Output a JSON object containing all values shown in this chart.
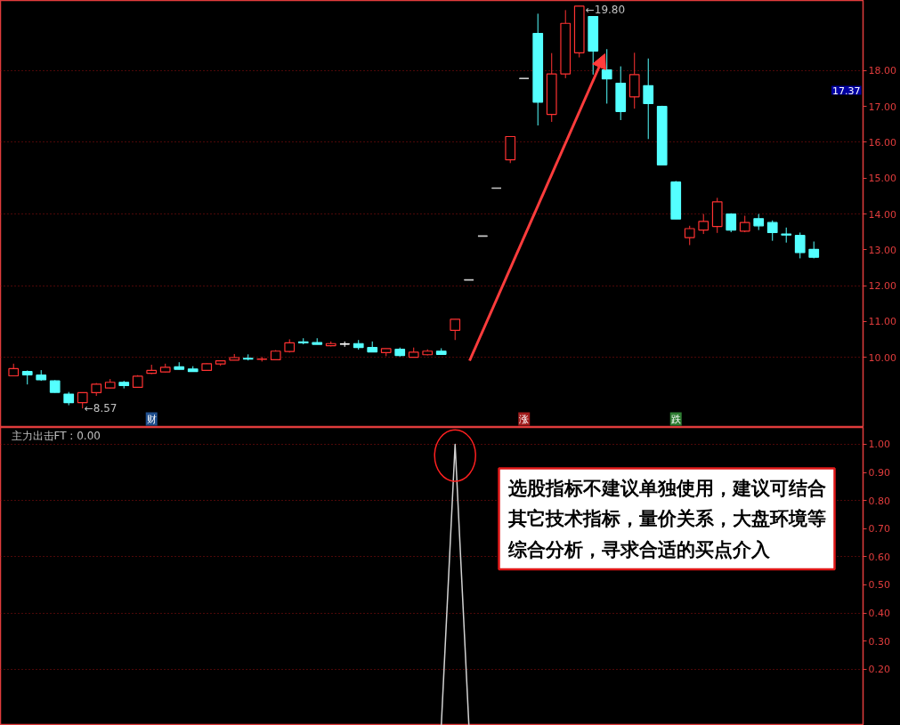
{
  "chart_data": [
    {
      "type": "candlestick",
      "categories": [
        null,
        null,
        null,
        null,
        null,
        null,
        null,
        null,
        null,
        null,
        "财",
        null,
        null,
        null,
        null,
        null,
        null,
        null,
        null,
        null,
        null,
        null,
        null,
        null,
        null,
        null,
        null,
        null,
        null,
        null,
        null,
        null,
        null,
        null,
        null,
        null,
        null,
        "涨",
        null,
        null,
        null,
        null,
        null,
        null,
        null,
        null,
        null,
        null,
        "跌",
        null,
        null,
        null,
        null,
        null,
        null,
        null,
        null,
        null,
        null
      ],
      "ohlc": [
        [
          9.48,
          9.82,
          9.48,
          9.68
        ],
        [
          9.6,
          9.63,
          9.24,
          9.51
        ],
        [
          9.5,
          9.64,
          9.34,
          9.37
        ],
        [
          9.34,
          9.36,
          9.01,
          9.02
        ],
        [
          8.97,
          9.03,
          8.66,
          8.73
        ],
        [
          8.73,
          9.02,
          8.57,
          9.01
        ],
        [
          9.01,
          9.28,
          8.92,
          9.25
        ],
        [
          9.14,
          9.39,
          9.13,
          9.3
        ],
        [
          9.3,
          9.34,
          9.13,
          9.21
        ],
        [
          9.16,
          9.5,
          9.16,
          9.47
        ],
        [
          9.55,
          9.79,
          9.53,
          9.63
        ],
        [
          9.59,
          9.82,
          9.58,
          9.72
        ],
        [
          9.73,
          9.86,
          9.66,
          9.66
        ],
        [
          9.67,
          9.75,
          9.6,
          9.6
        ],
        [
          9.63,
          9.83,
          9.63,
          9.82
        ],
        [
          9.81,
          9.91,
          9.76,
          9.9
        ],
        [
          9.92,
          10.09,
          9.92,
          9.99
        ],
        [
          9.97,
          10.08,
          9.91,
          9.95
        ],
        [
          9.94,
          10.01,
          9.88,
          9.95
        ],
        [
          9.93,
          10.2,
          9.93,
          10.17
        ],
        [
          10.16,
          10.5,
          10.13,
          10.4
        ],
        [
          10.43,
          10.53,
          10.36,
          10.4
        ],
        [
          10.41,
          10.53,
          10.36,
          10.36
        ],
        [
          10.32,
          10.44,
          10.3,
          10.38
        ],
        [
          10.37,
          10.44,
          10.29,
          10.37
        ],
        [
          10.38,
          10.48,
          10.21,
          10.27
        ],
        [
          10.27,
          10.44,
          10.15,
          10.15
        ],
        [
          10.13,
          10.24,
          10.03,
          10.24
        ],
        [
          10.22,
          10.27,
          10.02,
          10.05
        ],
        [
          10.0,
          10.27,
          10.0,
          10.14
        ],
        [
          10.07,
          10.22,
          10.05,
          10.17
        ],
        [
          10.17,
          10.25,
          10.08,
          10.08
        ],
        [
          10.75,
          11.06,
          10.48,
          11.06
        ],
        [
          12.16,
          12.16,
          12.16,
          12.16
        ],
        [
          13.38,
          13.38,
          13.38,
          13.38
        ],
        [
          14.72,
          14.72,
          14.72,
          14.72
        ],
        [
          15.51,
          16.16,
          15.42,
          16.16
        ],
        [
          17.78,
          17.78,
          17.78,
          17.78
        ],
        [
          19.04,
          19.59,
          16.47,
          17.12
        ],
        [
          16.78,
          18.49,
          16.57,
          17.91
        ],
        [
          17.91,
          19.69,
          17.79,
          19.32
        ],
        [
          18.5,
          19.8,
          18.37,
          19.8
        ],
        [
          19.51,
          19.51,
          17.89,
          18.55
        ],
        [
          18.02,
          18.6,
          17.08,
          17.77
        ],
        [
          17.65,
          18.12,
          16.62,
          16.86
        ],
        [
          17.27,
          18.5,
          16.94,
          17.89
        ],
        [
          17.58,
          18.34,
          16.09,
          17.08
        ],
        [
          17.0,
          17.02,
          15.37,
          15.37
        ],
        [
          14.89,
          14.92,
          13.86,
          13.86
        ],
        [
          13.34,
          13.67,
          13.13,
          13.59
        ],
        [
          13.55,
          14.0,
          13.44,
          13.79
        ],
        [
          13.65,
          14.45,
          13.47,
          14.34
        ],
        [
          14.0,
          14.02,
          13.49,
          13.55
        ],
        [
          13.52,
          13.95,
          13.49,
          13.76
        ],
        [
          13.87,
          14.0,
          13.55,
          13.67
        ],
        [
          13.76,
          13.82,
          13.25,
          13.48
        ],
        [
          13.44,
          13.62,
          13.2,
          13.41
        ],
        [
          13.4,
          13.48,
          12.76,
          12.92
        ],
        [
          13.01,
          13.23,
          12.76,
          12.79
        ]
      ],
      "colors": [
        "#ff3232",
        "#54ffff",
        "#54ffff",
        "#54ffff",
        "#54ffff",
        "#ff3232",
        "#ff3232",
        "#ff3232",
        "#54ffff",
        "#ff3232",
        "#ff3232",
        "#ff3232",
        "#54ffff",
        "#54ffff",
        "#ff3232",
        "#ff3232",
        "#ff3232",
        "#54ffff",
        "#ff3232",
        "#ff3232",
        "#ff3232",
        "#54ffff",
        "#54ffff",
        "#ff3232",
        "#ffffff",
        "#54ffff",
        "#54ffff",
        "#ff3232",
        "#54ffff",
        "#ff3232",
        "#ff3232",
        "#54ffff",
        "#ff3232",
        "#c8c8c8",
        "#c8c8c8",
        "#c8c8c8",
        "#ff3232",
        "#c8c8c8",
        "#54ffff",
        "#ff3232",
        "#ff3232",
        "#ff3232",
        "#54ffff",
        "#54ffff",
        "#54ffff",
        "#ff3232",
        "#54ffff",
        "#54ffff",
        "#54ffff",
        "#ff3232",
        "#ff3232",
        "#ff3232",
        "#54ffff",
        "#ff3232",
        "#54ffff",
        "#54ffff",
        "#54ffff",
        "#54ffff",
        "#54ffff"
      ],
      "ylim": [
        8.04,
        19.96
      ],
      "yticks": [
        {
          "value": 10,
          "label": "10.00"
        },
        {
          "value": 11,
          "label": "11.00"
        },
        {
          "value": 12,
          "label": "12.00"
        },
        {
          "value": 13,
          "label": "13.00"
        },
        {
          "value": 14,
          "label": "14.00"
        },
        {
          "value": 15,
          "label": "15.00"
        },
        {
          "value": 16,
          "label": "16.00"
        },
        {
          "value": 17,
          "label": "17.00"
        },
        {
          "value": 18,
          "label": "18.00"
        }
      ],
      "grid": "y",
      "annotations": [
        "←8.57",
        "←19.80",
        "17.37"
      ]
    },
    {
      "type": "line",
      "title": "主力出击FT : 0.00",
      "categories": [
        null,
        null,
        null,
        null,
        null,
        null,
        null,
        null,
        null,
        null,
        null,
        null,
        null,
        null,
        null,
        null,
        null,
        null,
        null,
        null,
        null,
        null,
        null,
        null,
        null,
        null,
        null,
        null,
        null,
        null,
        null,
        null,
        null,
        null,
        null,
        null,
        null,
        null,
        null,
        null,
        null,
        null,
        null,
        null,
        null,
        null,
        null,
        null,
        null,
        null,
        null,
        null,
        null,
        null,
        null,
        null,
        null,
        null,
        null
      ],
      "series": [
        {
          "color": "#d2d2d2",
          "values": [
            null,
            null,
            null,
            null,
            null,
            null,
            null,
            null,
            null,
            null,
            null,
            null,
            null,
            null,
            null,
            null,
            null,
            null,
            null,
            null,
            null,
            null,
            null,
            null,
            null,
            null,
            null,
            null,
            null,
            null,
            null,
            0,
            1.0,
            0,
            null,
            null,
            null,
            null,
            null,
            null,
            null,
            null,
            null,
            null,
            null,
            null,
            null,
            null,
            null,
            null,
            null,
            null,
            null,
            null,
            null,
            null,
            null,
            null,
            null
          ]
        }
      ],
      "ylim": [
        0,
        1.06
      ],
      "yticks": [
        {
          "value": 0.2,
          "label": "0.20"
        },
        {
          "value": 0.3,
          "label": "0.30"
        },
        {
          "value": 0.4,
          "label": "0.40"
        },
        {
          "value": 0.5,
          "label": "0.50"
        },
        {
          "value": 0.6,
          "label": "0.60"
        },
        {
          "value": 0.7,
          "label": "0.70"
        },
        {
          "value": 0.8,
          "label": "0.80"
        },
        {
          "value": 0.9,
          "label": "0.90"
        },
        {
          "value": 1.0,
          "label": "1.00"
        }
      ],
      "grid": "y",
      "tick_labels": "y",
      "marker": "none",
      "line_style": "solid",
      "annotations": [
        "选股指标不建议单独使用，建议可结合其它技术指标，量价关系，大盘环境等综合分析，寻求合适的买点介入"
      ]
    }
  ]
}
